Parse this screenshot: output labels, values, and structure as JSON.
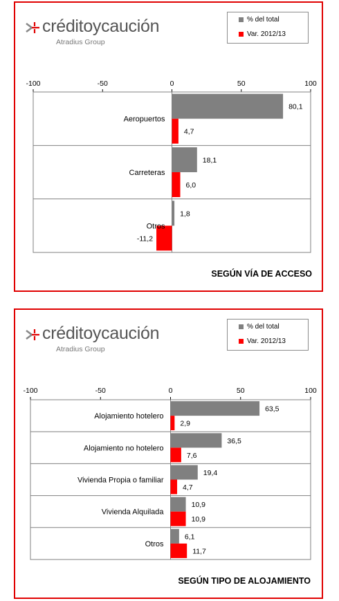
{
  "brand": {
    "name": "créditoycaución",
    "group": "Atradius Group"
  },
  "legend": {
    "total_label": "% del total",
    "var_label": "Var. 2012/13"
  },
  "colors": {
    "total": "#808080",
    "var": "#ff0000",
    "border": "#e00000"
  },
  "chart_data": [
    {
      "type": "bar",
      "orientation": "horizontal",
      "title": "SEGÚN VÍA DE ACCESO",
      "xlim": [
        -100,
        100
      ],
      "ticks": [
        "-100",
        "-50",
        "0",
        "50",
        "100"
      ],
      "grid": true,
      "categories": [
        "Aeropuertos",
        "Carreteras",
        "Otros"
      ],
      "series": [
        {
          "name": "% del total",
          "values": [
            80.1,
            18.1,
            1.8
          ],
          "labels": [
            "80,1",
            "18,1",
            "1,8"
          ]
        },
        {
          "name": "Var. 2012/13",
          "values": [
            4.7,
            6.0,
            -11.2
          ],
          "labels": [
            "4,7",
            "6,0",
            "-11,2"
          ]
        }
      ]
    },
    {
      "type": "bar",
      "orientation": "horizontal",
      "title": "SEGÚN TIPO DE ALOJAMIENTO",
      "xlim": [
        -100,
        100
      ],
      "ticks": [
        "-100",
        "-50",
        "0",
        "50",
        "100"
      ],
      "grid": true,
      "categories": [
        "Alojamiento hotelero",
        "Alojamiento no hotelero",
        "Vivienda Propia o familiar",
        "Vivienda Alquilada",
        "Otros"
      ],
      "series": [
        {
          "name": "% del total",
          "values": [
            63.5,
            36.5,
            19.4,
            10.9,
            6.1
          ],
          "labels": [
            "63,5",
            "36,5",
            "19,4",
            "10,9",
            "6,1"
          ]
        },
        {
          "name": "Var. 2012/13",
          "values": [
            2.9,
            7.6,
            4.7,
            10.9,
            11.7
          ],
          "labels": [
            "2,9",
            "7,6",
            "4,7",
            "10,9",
            "11,7"
          ]
        }
      ]
    }
  ]
}
